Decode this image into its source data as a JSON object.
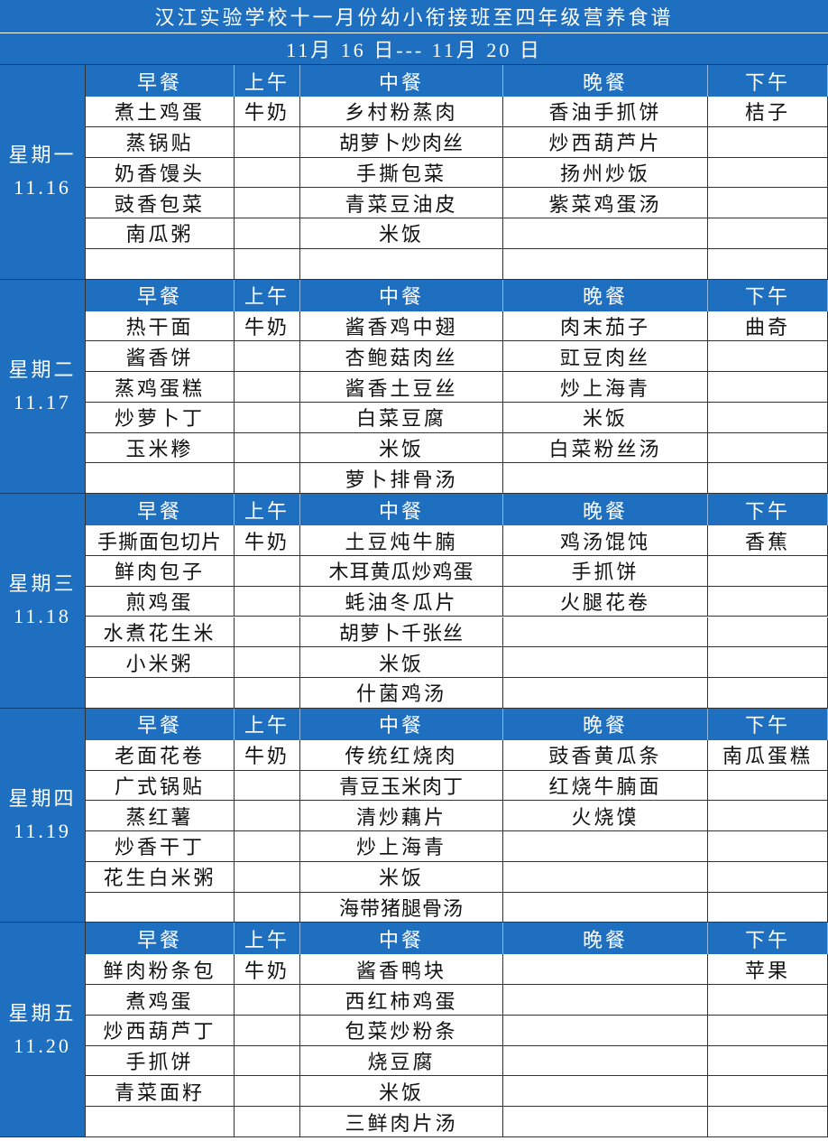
{
  "title": "汉江实验学校十一月份幼小衔接班至四年级营养食谱",
  "subtitle": "11月 16 日--- 11月 20 日",
  "headers": [
    "早餐",
    "上午",
    "中餐",
    "晚餐",
    "下午"
  ],
  "days": [
    {
      "name": "星期一",
      "date": "11.16",
      "rows": [
        [
          "煮土鸡蛋",
          "牛奶",
          "乡村粉蒸肉",
          "香油手抓饼",
          "桔子"
        ],
        [
          "蒸锅贴",
          null,
          "胡萝卜炒肉丝",
          "炒西葫芦片",
          null
        ],
        [
          "奶香馒头",
          null,
          "手撕包菜",
          "扬州炒饭",
          null
        ],
        [
          "豉香包菜",
          null,
          "青菜豆油皮",
          "紫菜鸡蛋汤",
          null
        ],
        [
          "南瓜粥",
          null,
          "米饭",
          null,
          null
        ]
      ]
    },
    {
      "name": "星期二",
      "date": "11.17",
      "rows": [
        [
          "热干面",
          "牛奶",
          "酱香鸡中翅",
          "肉末茄子",
          "曲奇"
        ],
        [
          "酱香饼",
          null,
          "杏鲍菇肉丝",
          "豇豆肉丝",
          null
        ],
        [
          "蒸鸡蛋糕",
          null,
          "酱香土豆丝",
          "炒上海青",
          null
        ],
        [
          "炒萝卜丁",
          null,
          "白菜豆腐",
          "米饭",
          null
        ],
        [
          "玉米糁",
          null,
          "米饭",
          "白菜粉丝汤",
          null
        ],
        [
          null,
          null,
          "萝卜排骨汤",
          null,
          null
        ]
      ]
    },
    {
      "name": "星期三",
      "date": "11.18",
      "rows": [
        [
          "手撕面包切片",
          "牛奶",
          "土豆炖牛腩",
          "鸡汤馄饨",
          "香蕉"
        ],
        [
          "鲜肉包子",
          null,
          "木耳黄瓜炒鸡蛋",
          "手抓饼",
          null
        ],
        [
          "煎鸡蛋",
          null,
          "蚝油冬瓜片",
          "火腿花卷",
          null
        ],
        [
          "水煮花生米",
          null,
          "胡萝卜千张丝",
          null,
          null
        ],
        [
          "小米粥",
          null,
          "米饭",
          null,
          null
        ],
        [
          null,
          null,
          "什菌鸡汤",
          null,
          null
        ]
      ]
    },
    {
      "name": "星期四",
      "date": "11.19",
      "rows": [
        [
          "老面花卷",
          "牛奶",
          "传统红烧肉",
          "豉香黄瓜条",
          "南瓜蛋糕"
        ],
        [
          "广式锅贴",
          null,
          "青豆玉米肉丁",
          "红烧牛腩面",
          null
        ],
        [
          "蒸红薯",
          null,
          "清炒藕片",
          "火烧馍",
          null
        ],
        [
          "炒香干丁",
          null,
          "炒上海青",
          null,
          null
        ],
        [
          "花生白米粥",
          null,
          "米饭",
          null,
          null
        ],
        [
          null,
          null,
          "海带猪腿骨汤",
          null,
          null
        ]
      ]
    },
    {
      "name": "星期五",
      "date": "11.20",
      "rows": [
        [
          "鲜肉粉条包",
          "牛奶",
          "酱香鸭块",
          null,
          "苹果"
        ],
        [
          "煮鸡蛋",
          null,
          "西红柿鸡蛋",
          null,
          null
        ],
        [
          "炒西葫芦丁",
          null,
          "包菜炒粉条",
          null,
          null
        ],
        [
          "手抓饼",
          null,
          "烧豆腐",
          null,
          null
        ],
        [
          "青菜面籽",
          null,
          "米饭",
          null,
          null
        ],
        [
          null,
          null,
          "三鲜肉片汤",
          null,
          null
        ]
      ]
    }
  ]
}
